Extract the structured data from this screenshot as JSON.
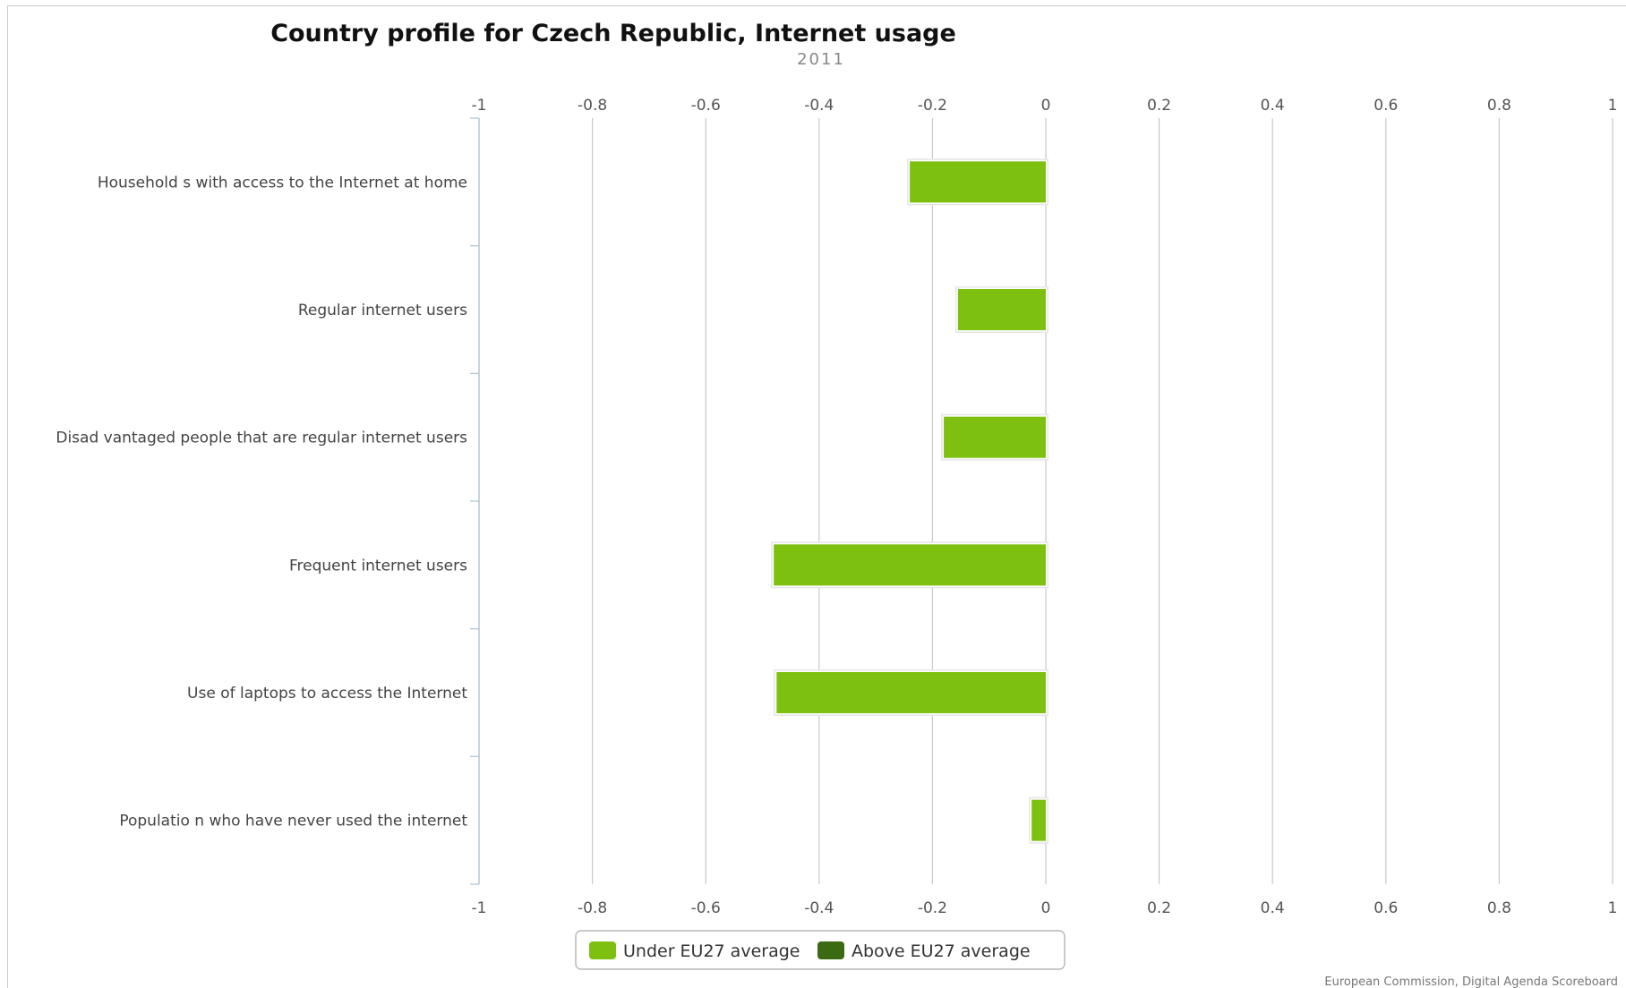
{
  "chart_data": {
    "type": "bar",
    "orientation": "horizontal",
    "title": "Country profile for Czech Republic, Internet usage",
    "subtitle": "2011",
    "categories": [
      "Household s with access to the Internet at home",
      "Regular internet users",
      "Disad vantaged people that are regular internet users",
      "Frequent internet users",
      "Use of laptops to access the Internet",
      "Populatio n who have never used the internet"
    ],
    "series": [
      {
        "name": "Under EU27 average",
        "color": "#7dc010",
        "values": [
          -0.24,
          -0.155,
          -0.18,
          -0.48,
          -0.475,
          -0.025
        ]
      },
      {
        "name": "Above EU27 average",
        "color": "#3a6b12",
        "values": [
          null,
          null,
          null,
          null,
          null,
          null
        ]
      }
    ],
    "xlim": [
      -1,
      1
    ],
    "xticks": [
      -1,
      -0.8,
      -0.6,
      -0.4,
      -0.2,
      0,
      0.2,
      0.4,
      0.6,
      0.8,
      1
    ],
    "xtick_labels": [
      "-1",
      "-0.8",
      "-0.6",
      "-0.4",
      "-0.2",
      "0",
      "0.2",
      "0.4",
      "0.6",
      "0.8",
      "1"
    ],
    "grid": true,
    "legend_position": "bottom-center",
    "credit": "European Commission, Digital Agenda Scoreboard"
  }
}
